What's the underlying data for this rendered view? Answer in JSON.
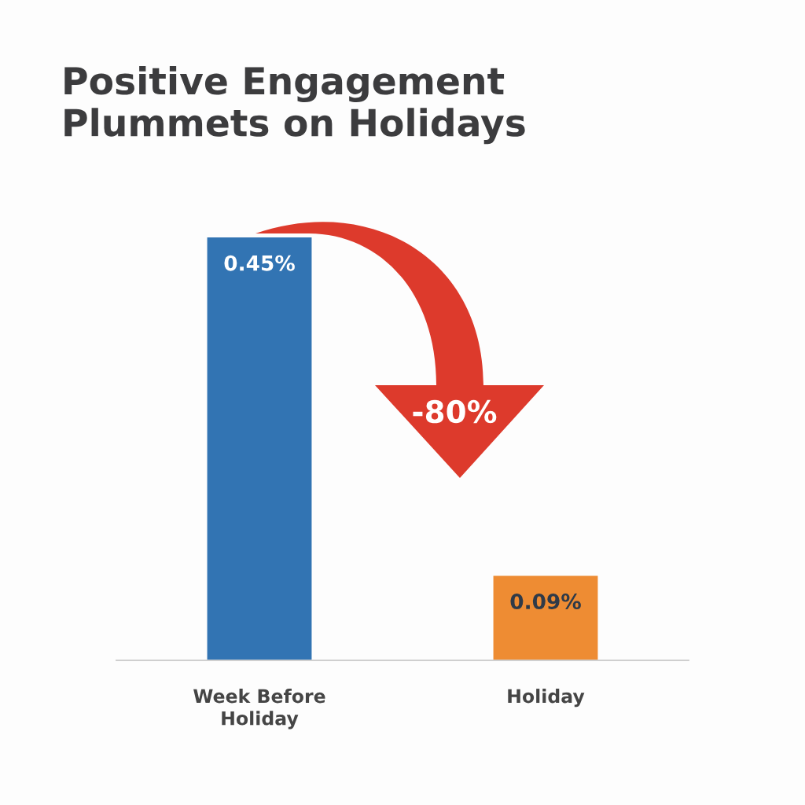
{
  "chart_data": {
    "type": "bar",
    "title": "Positive Engagement\nPlummets on Holidays",
    "categories": [
      "Week Before\nHoliday",
      "Holiday"
    ],
    "values": [
      0.45,
      0.09
    ],
    "colors": [
      "#3274b3",
      "#ee8c33"
    ],
    "value_labels": [
      "0.45%",
      "0.09%"
    ],
    "annotations": [
      "-80%"
    ],
    "tick_labels": "x"
  }
}
